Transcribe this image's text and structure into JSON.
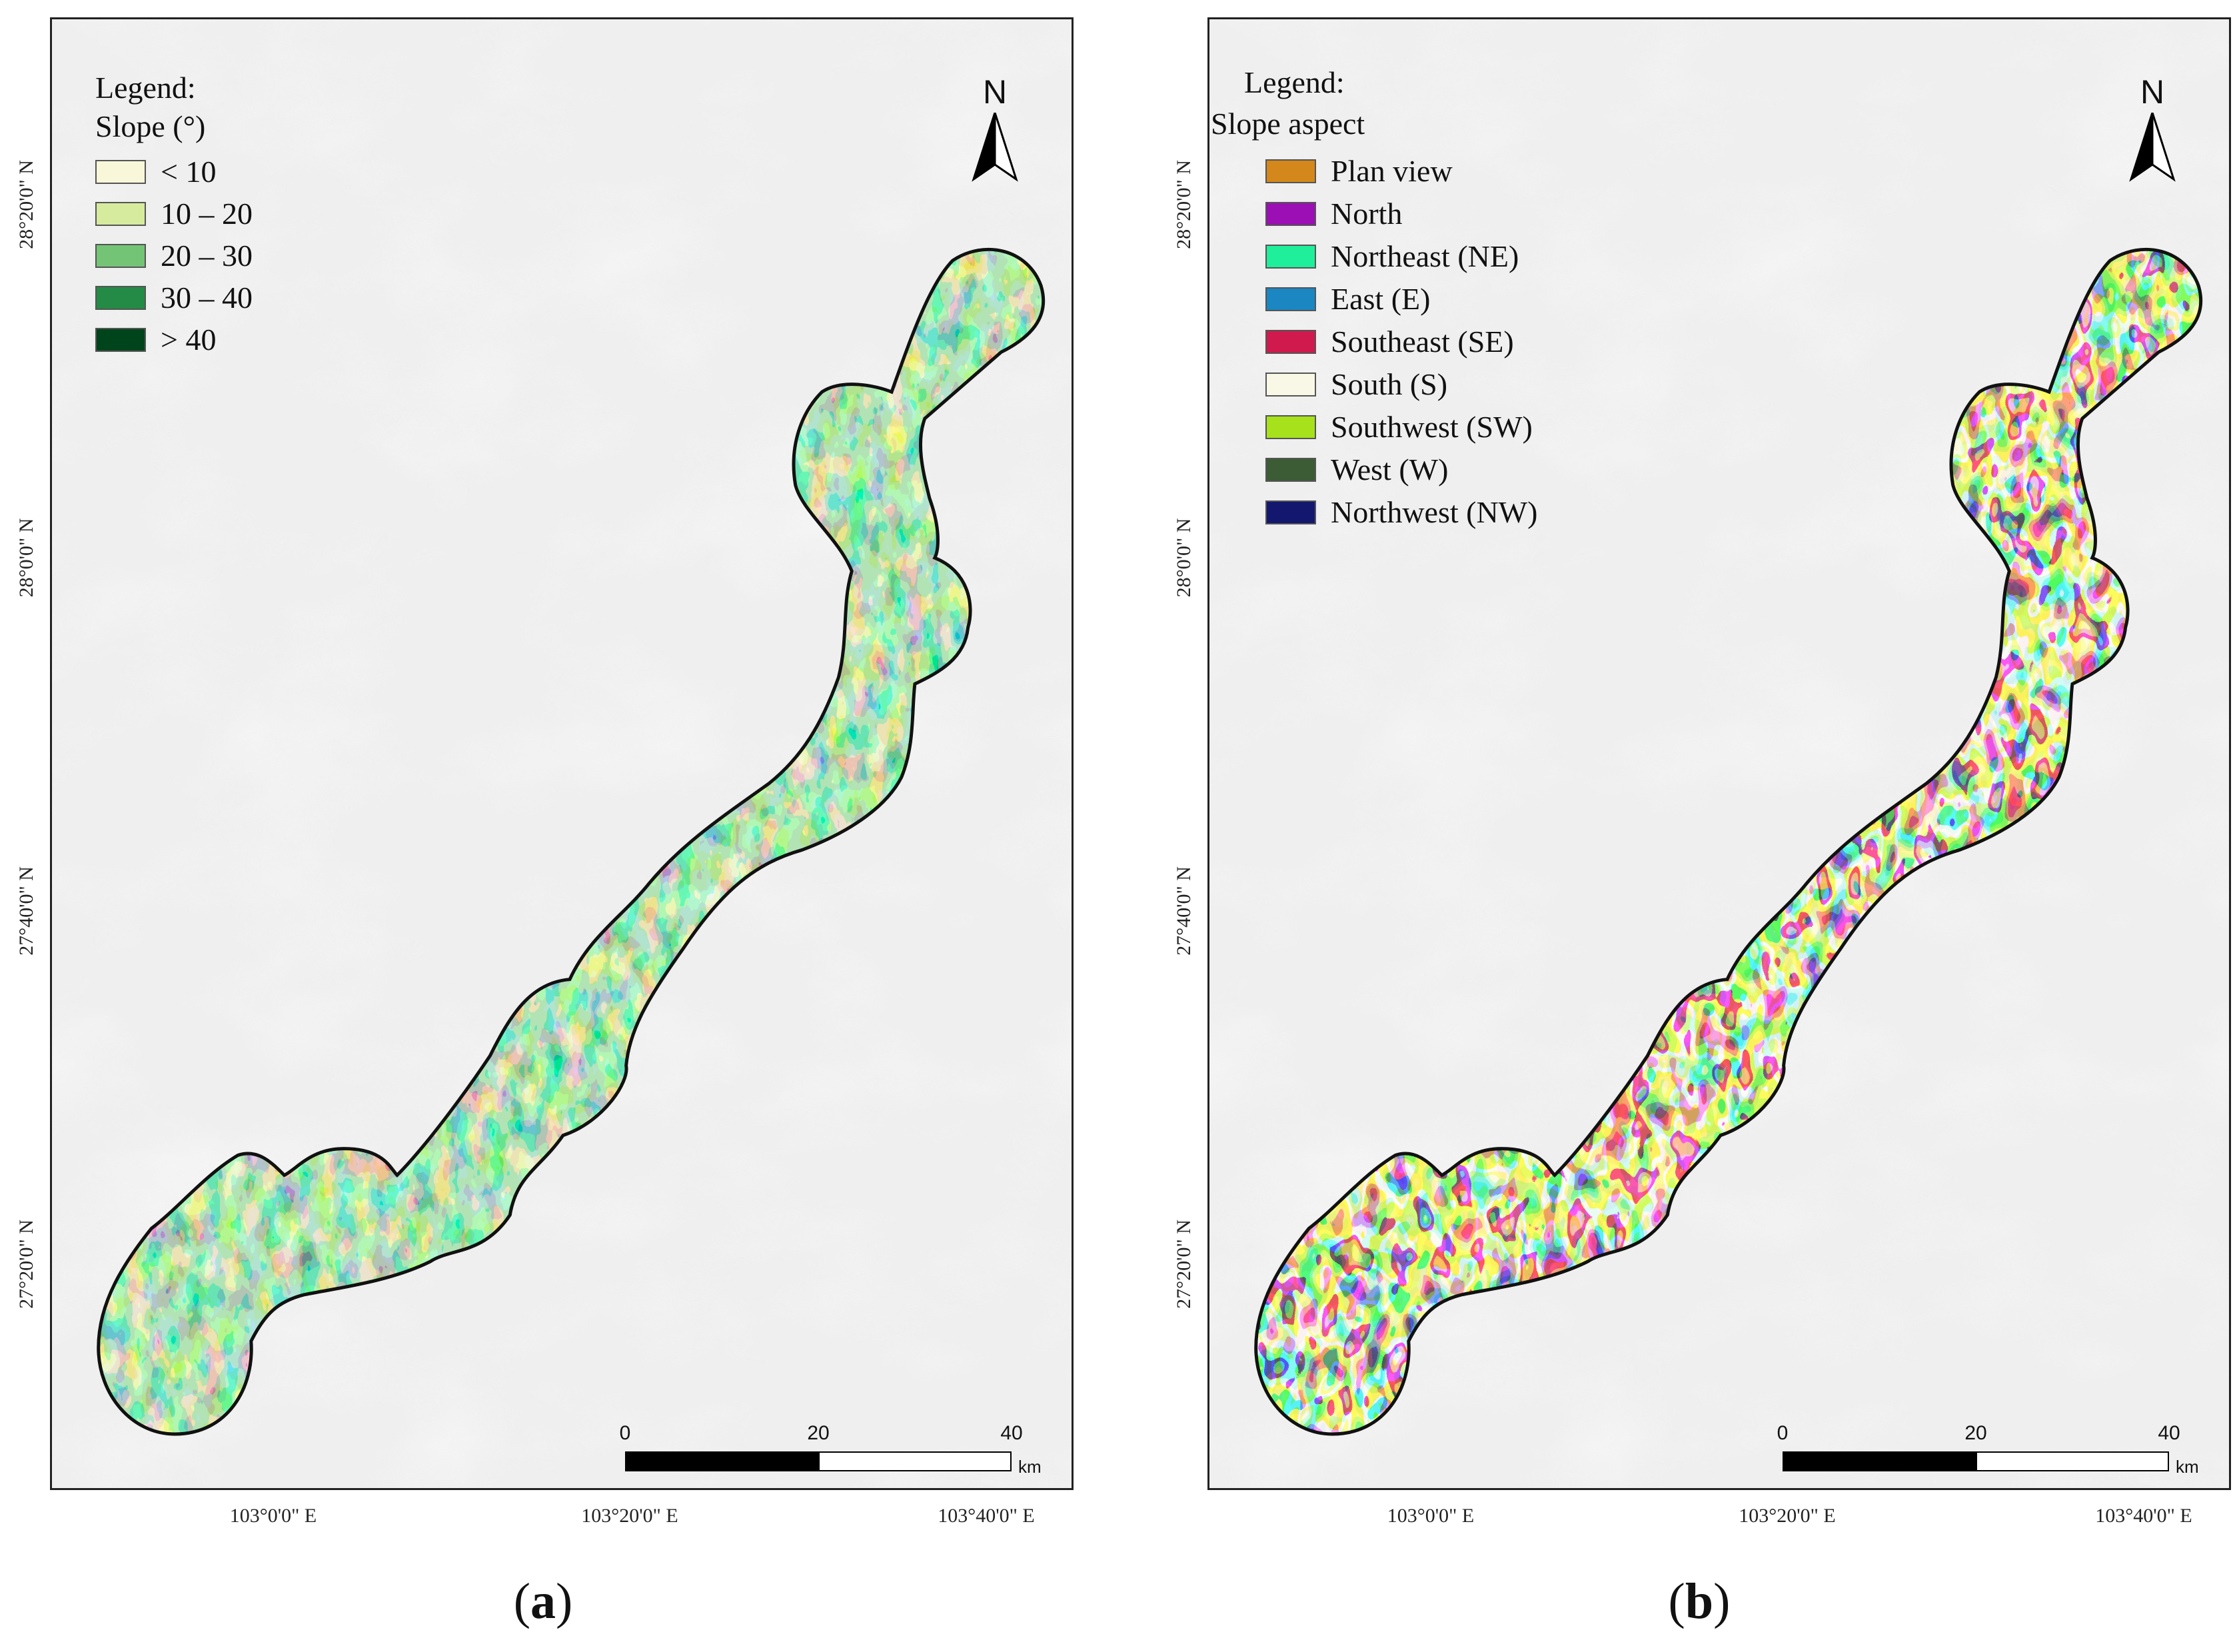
{
  "panels": [
    {
      "id": "a",
      "label_open": "(",
      "label_letter": "a",
      "label_close": ")",
      "legend": {
        "title_line1": "Legend:",
        "title_line2": "Slope (°)",
        "items": [
          {
            "label": "< 10",
            "color": "#f8f7da"
          },
          {
            "label": "10 – 20",
            "color": "#d7eb9e"
          },
          {
            "label": "20 – 30",
            "color": "#74c476"
          },
          {
            "label": "30 – 40",
            "color": "#238b45"
          },
          {
            "label": "> 40",
            "color": "#00441b"
          }
        ]
      },
      "north_label": "N",
      "scale": {
        "ticks": [
          "0",
          "20",
          "40"
        ],
        "unit": "km"
      },
      "x_ticks": [
        "103°0'0\" E",
        "103°20'0\" E",
        "103°40'0\" E"
      ],
      "y_ticks": [
        "28°20'0\" N",
        "28°0'0\" N",
        "27°40'0\" N",
        "27°20'0\" N"
      ]
    },
    {
      "id": "b",
      "label_open": "(",
      "label_letter": "b",
      "label_close": ")",
      "legend": {
        "title_line1": "Legend:",
        "title_line2": "Slope aspect",
        "items": [
          {
            "label": "Plan view",
            "color": "#d4871a"
          },
          {
            "label": "North",
            "color": "#9b0fb4"
          },
          {
            "label": "Northeast (NE)",
            "color": "#1fef9a"
          },
          {
            "label": "East (E)",
            "color": "#1a86c2"
          },
          {
            "label": "Southeast (SE)",
            "color": "#d01a4e"
          },
          {
            "label": "South (S)",
            "color": "#f9f7e6"
          },
          {
            "label": "Southwest (SW)",
            "color": "#a7e11c"
          },
          {
            "label": "West (W)",
            "color": "#3b5c34"
          },
          {
            "label": "Northwest (NW)",
            "color": "#14176e"
          }
        ]
      },
      "north_label": "N",
      "scale": {
        "ticks": [
          "0",
          "20",
          "40"
        ],
        "unit": "km"
      },
      "x_ticks": [
        "103°0'0\" E",
        "103°20'0\" E",
        "103°40'0\" E"
      ],
      "y_ticks": [
        "28°20'0\" N",
        "28°0'0\" N",
        "27°40'0\" N",
        "27°20'0\" N"
      ]
    }
  ]
}
